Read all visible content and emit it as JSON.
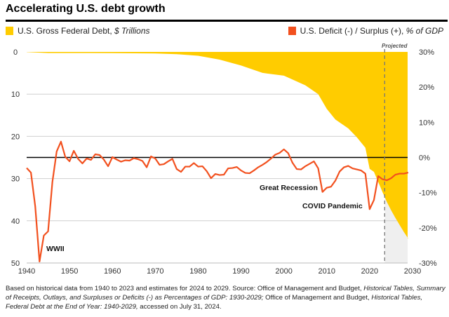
{
  "title": "Accelerating U.S. debt growth",
  "legend": {
    "debt": {
      "label": "U.S. Gross Federal Debt, ",
      "label_italic": "$ Trillions",
      "color": "#FFCC00"
    },
    "deficit": {
      "label": "U.S. Deficit (-) / Surplus (+), ",
      "label_italic": "% of GDP",
      "color": "#F2501E"
    }
  },
  "footnote": {
    "p1": "Based on historical data from 1940 to 2023 and estimates for 2024 to 2029. Source: Office of Management and Budget, ",
    "i1": "Historical Tables, Summary of Receipts, Outlays, and Surpluses or Deficits (-) as Percentages of GDP: 1930-2029;",
    "p2": " Office of Management and Budget, ",
    "i2": "Historical Tables, Federal Debt at the End of Year: 1940-2029,",
    "p3": " accessed on July 31, 2024."
  },
  "chart_data": {
    "type": "area+line",
    "title": "Accelerating U.S. debt growth",
    "x_ticks": [
      "1940",
      "1950",
      "1960",
      "1970",
      "1980",
      "1990",
      "2000",
      "2010",
      "2020",
      "2030"
    ],
    "xlim": [
      1940,
      2030
    ],
    "left_axis": {
      "label": "U.S. Gross Federal Debt, $ Trillions",
      "ticks": [
        "0",
        "10",
        "20",
        "30",
        "40",
        "50"
      ],
      "range": [
        0,
        50
      ],
      "inverted": true
    },
    "right_axis": {
      "label": "U.S. Deficit (-) / Surplus (+), % of GDP",
      "ticks": [
        "30%",
        "20%",
        "10%",
        "0%",
        "-10%",
        "-20%",
        "-30%"
      ],
      "range": [
        -30,
        30
      ]
    },
    "projected_from": 2023.5,
    "projected_label": "Projected",
    "annotations": [
      {
        "text": "WWII",
        "x": 1944
      },
      {
        "text": "Great Recession",
        "x": 2009
      },
      {
        "text": "COVID Pandemic",
        "x": 2020
      }
    ],
    "debt": {
      "x": [
        1940,
        1945,
        1950,
        1960,
        1970,
        1975,
        1980,
        1985,
        1990,
        1995,
        2000,
        2005,
        2008,
        2010,
        2012,
        2015,
        2017,
        2019,
        2020,
        2021,
        2022,
        2023,
        2024,
        2025,
        2026,
        2027,
        2028,
        2029
      ],
      "values": [
        0.05,
        0.26,
        0.26,
        0.29,
        0.38,
        0.54,
        0.91,
        1.82,
        3.21,
        4.97,
        5.63,
        7.91,
        10.0,
        13.5,
        16.0,
        18.1,
        20.2,
        22.7,
        27.7,
        28.4,
        30.8,
        33.2,
        35.5,
        37.5,
        39.3,
        41.0,
        42.7,
        44.2
      ]
    },
    "deficit": {
      "x_start": 1940,
      "values": [
        -3.0,
        -4.3,
        -13.9,
        -29.6,
        -22.2,
        -21.0,
        -7.0,
        1.7,
        4.5,
        0.2,
        -1.1,
        1.9,
        -0.4,
        -1.7,
        -0.3,
        -0.7,
        0.9,
        0.7,
        -0.6,
        -2.5,
        0.1,
        -0.6,
        -1.2,
        -0.8,
        -0.9,
        -0.2,
        -0.5,
        -1.0,
        -2.8,
        0.3,
        -0.3,
        -2.1,
        -1.9,
        -1.1,
        -0.4,
        -3.3,
        -4.1,
        -2.6,
        -2.6,
        -1.6,
        -2.6,
        -2.5,
        -3.9,
        -5.9,
        -4.7,
        -5.0,
        -4.9,
        -3.1,
        -3.0,
        -2.7,
        -3.7,
        -4.4,
        -4.5,
        -3.7,
        -2.8,
        -2.1,
        -1.3,
        -0.3,
        0.8,
        1.3,
        2.3,
        1.2,
        -1.5,
        -3.3,
        -3.4,
        -2.5,
        -1.8,
        -1.1,
        -3.1,
        -9.8,
        -8.6,
        -8.3,
        -6.6,
        -4.0,
        -2.8,
        -2.4,
        -3.1,
        -3.4,
        -3.7,
        -4.6,
        -14.7,
        -12.1,
        -5.3,
        -6.2,
        -6.5,
        -5.9,
        -4.9,
        -4.6,
        -4.6,
        -4.3
      ]
    }
  }
}
